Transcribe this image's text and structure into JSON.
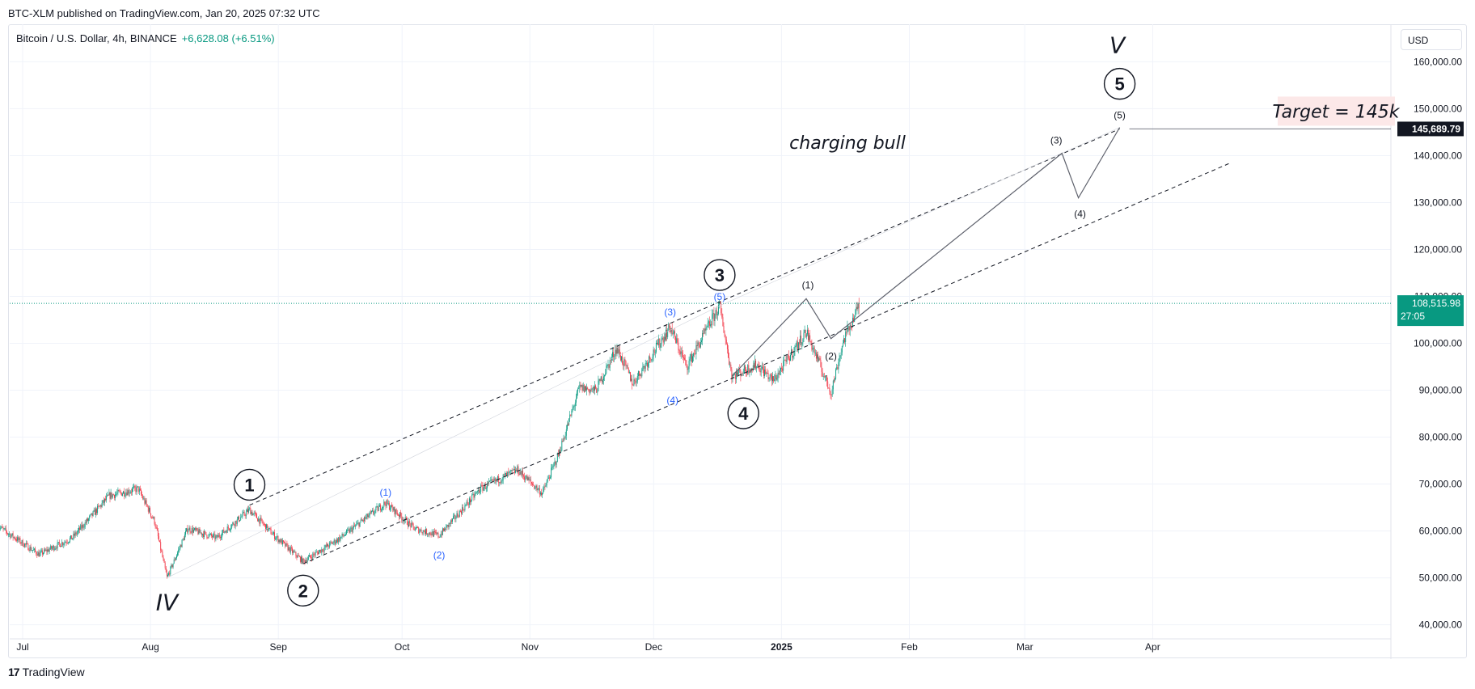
{
  "header": {
    "published": "BTC-XLM published on TradingView.com, Jan 20, 2025 07:32 UTC"
  },
  "symbol": {
    "name": "Bitcoin / U.S. Dollar, 4h, BINANCE",
    "change": "+6,628.08 (+6.51%)"
  },
  "currency_button": "USD",
  "footer": {
    "logo": "17",
    "brand": "TradingView"
  },
  "colors": {
    "up": "#089981",
    "down": "#f23645",
    "blue_label": "#2962ff",
    "target_bg": "#fce8e8"
  },
  "chart_data": {
    "type": "candlestick",
    "title": "Bitcoin / U.S. Dollar, 4h, BINANCE",
    "ylim": [
      37000,
      168000
    ],
    "x_ticks": [
      "Jul",
      "Aug",
      "Sep",
      "Oct",
      "Nov",
      "Dec",
      "2025",
      "Feb",
      "Mar",
      "Apr"
    ],
    "y_ticks": [
      {
        "value": 40000,
        "label": "40,000.00"
      },
      {
        "value": 50000,
        "label": "50,000.00"
      },
      {
        "value": 60000,
        "label": "60,000.00"
      },
      {
        "value": 70000,
        "label": "70,000.00"
      },
      {
        "value": 80000,
        "label": "80,000.00"
      },
      {
        "value": 90000,
        "label": "90,000.00"
      },
      {
        "value": 100000,
        "label": "100,000.00"
      },
      {
        "value": 110000,
        "label": "110,000.00"
      },
      {
        "value": 120000,
        "label": "120,000.00"
      },
      {
        "value": 130000,
        "label": "130,000.00"
      },
      {
        "value": 140000,
        "label": "140,000.00"
      },
      {
        "value": 150000,
        "label": "150,000.00"
      },
      {
        "value": 160000,
        "label": "160,000.00"
      }
    ],
    "price_path": [
      {
        "date": "2024-06-25",
        "value": 61000
      },
      {
        "date": "2024-07-05",
        "value": 55000
      },
      {
        "date": "2024-07-13",
        "value": 58500
      },
      {
        "date": "2024-07-22",
        "value": 67500
      },
      {
        "date": "2024-07-29",
        "value": 69000
      },
      {
        "date": "2024-08-02",
        "value": 62000
      },
      {
        "date": "2024-08-05",
        "value": 50000
      },
      {
        "date": "2024-08-10",
        "value": 60500
      },
      {
        "date": "2024-08-17",
        "value": 58500
      },
      {
        "date": "2024-08-25",
        "value": 64500
      },
      {
        "date": "2024-08-31",
        "value": 59000
      },
      {
        "date": "2024-09-07",
        "value": 53500
      },
      {
        "date": "2024-09-16",
        "value": 58500
      },
      {
        "date": "2024-09-27",
        "value": 66000
      },
      {
        "date": "2024-10-04",
        "value": 60500
      },
      {
        "date": "2024-10-10",
        "value": 59000
      },
      {
        "date": "2024-10-20",
        "value": 69000
      },
      {
        "date": "2024-10-29",
        "value": 73000
      },
      {
        "date": "2024-11-04",
        "value": 68000
      },
      {
        "date": "2024-11-08",
        "value": 76500
      },
      {
        "date": "2024-11-13",
        "value": 90500
      },
      {
        "date": "2024-11-17",
        "value": 90000
      },
      {
        "date": "2024-11-22",
        "value": 99000
      },
      {
        "date": "2024-11-26",
        "value": 91500
      },
      {
        "date": "2024-12-05",
        "value": 103500
      },
      {
        "date": "2024-12-09",
        "value": 95000
      },
      {
        "date": "2024-12-17",
        "value": 108000
      },
      {
        "date": "2024-12-20",
        "value": 93000
      },
      {
        "date": "2024-12-26",
        "value": 95500
      },
      {
        "date": "2024-12-30",
        "value": 92000
      },
      {
        "date": "2025-01-07",
        "value": 102500
      },
      {
        "date": "2025-01-13",
        "value": 89500
      },
      {
        "date": "2025-01-16",
        "value": 100500
      },
      {
        "date": "2025-01-20",
        "value": 108500
      }
    ],
    "current_price": {
      "value": 108515.98,
      "label": "108,515.98",
      "countdown": "27:05"
    },
    "target_price": {
      "value": 145689.79,
      "label": "145,689.79"
    },
    "annotations": {
      "text_note": "charging bull",
      "target_label": "Target = 145k",
      "major_waves": [
        {
          "label": "IV",
          "date": "2024-08-05",
          "value": 50000
        },
        {
          "label": "V",
          "date": "2025-03-24",
          "value": 146000
        }
      ],
      "primary_waves": [
        {
          "label": "1",
          "date": "2024-08-25",
          "value": 64500
        },
        {
          "label": "2",
          "date": "2024-09-07",
          "value": 53500
        },
        {
          "label": "3",
          "date": "2024-12-17",
          "value": 108000
        },
        {
          "label": "4",
          "date": "2024-12-20",
          "value": 93000
        },
        {
          "label": "5",
          "date": "2025-03-24",
          "value": 146000
        }
      ],
      "intermediate_waves_blue": [
        {
          "label": "(1)",
          "date": "2024-09-27",
          "value": 66000
        },
        {
          "label": "(2)",
          "date": "2024-10-10",
          "value": 59000
        },
        {
          "label": "(3)",
          "date": "2024-12-05",
          "value": 103500
        },
        {
          "label": "(4)",
          "date": "2024-12-05",
          "value": 92000
        },
        {
          "label": "(5)",
          "date": "2024-12-17",
          "value": 108000
        }
      ],
      "projected_waves": [
        {
          "label": "(1)",
          "date": "2025-01-07",
          "value": 109500
        },
        {
          "label": "(2)",
          "date": "2025-01-13",
          "value": 101000
        },
        {
          "label": "(3)",
          "date": "2025-03-10",
          "value": 140500
        },
        {
          "label": "(4)",
          "date": "2025-03-14",
          "value": 131000
        },
        {
          "label": "(5)",
          "date": "2025-03-24",
          "value": 146000
        }
      ],
      "channel_upper": [
        {
          "date": "2024-08-25",
          "value": 65500
        },
        {
          "date": "2025-03-24",
          "value": 145689
        }
      ],
      "channel_lower": [
        {
          "date": "2024-09-07",
          "value": 53000
        },
        {
          "date": "2025-04-20",
          "value": 138500
        }
      ]
    }
  }
}
